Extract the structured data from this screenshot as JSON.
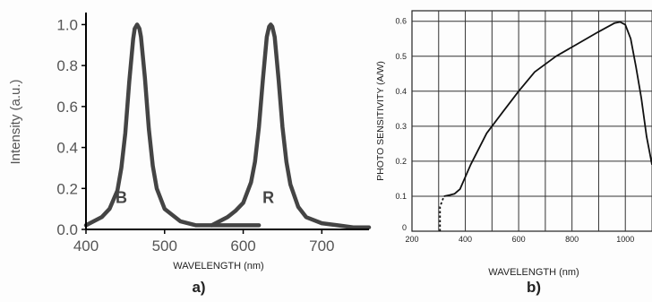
{
  "chart_data": [
    {
      "panel_label": "a)",
      "type": "line",
      "title": "",
      "xlabel": "WAVELENGTH (nm)",
      "ylabel": "Intensity (a.u.)",
      "xlim": [
        400,
        760
      ],
      "ylim": [
        0,
        1.05
      ],
      "x_ticks": [
        400,
        500,
        600,
        700
      ],
      "x_tick_labels": [
        "400",
        "500",
        "600",
        "700"
      ],
      "y_ticks": [
        0.0,
        0.2,
        0.4,
        0.6,
        0.8,
        1.0
      ],
      "y_tick_labels": [
        "0.0",
        "0.2",
        "0.4",
        "0.6",
        "0.8",
        "1.0"
      ],
      "grid": false,
      "legend": "none",
      "color": "#444444",
      "series": [
        {
          "label": "B",
          "label_point": [
            445,
            0.16
          ],
          "x": [
            400,
            420,
            430,
            440,
            445,
            450,
            455,
            460,
            462,
            465,
            468,
            470,
            475,
            480,
            485,
            490,
            500,
            520,
            540,
            560,
            580,
            600,
            610,
            620
          ],
          "y": [
            0.02,
            0.06,
            0.1,
            0.19,
            0.3,
            0.47,
            0.72,
            0.93,
            0.98,
            1.0,
            0.98,
            0.94,
            0.74,
            0.49,
            0.31,
            0.2,
            0.1,
            0.04,
            0.02,
            0.02,
            0.02,
            0.02,
            0.02,
            0.02
          ]
        },
        {
          "label": "R",
          "label_point": [
            632,
            0.16
          ],
          "x": [
            560,
            580,
            590,
            600,
            610,
            615,
            620,
            625,
            630,
            633,
            635,
            637,
            640,
            645,
            650,
            655,
            660,
            670,
            680,
            700,
            720,
            740,
            760
          ],
          "y": [
            0.02,
            0.06,
            0.09,
            0.13,
            0.23,
            0.33,
            0.5,
            0.73,
            0.94,
            0.99,
            1.0,
            0.99,
            0.94,
            0.73,
            0.5,
            0.33,
            0.22,
            0.11,
            0.06,
            0.03,
            0.02,
            0.01,
            0.01
          ]
        }
      ]
    },
    {
      "panel_label": "b)",
      "type": "line",
      "title": "",
      "xlabel": "WAVELENGTH (nm)",
      "ylabel": "PHOTO SENSITIVITY (A/W)",
      "xlim": [
        200,
        1100
      ],
      "ylim": [
        0,
        0.63
      ],
      "x_ticks": [
        200,
        400,
        600,
        800,
        1000
      ],
      "x_tick_labels": [
        "200",
        "400",
        "600",
        "800",
        "1000"
      ],
      "x_grid_step": 100,
      "y_ticks": [
        0,
        0.1,
        0.2,
        0.3,
        0.4,
        0.5,
        0.6
      ],
      "y_tick_labels": [
        "0",
        "0.1",
        "0.2",
        "0.3",
        "0.4",
        "0.5",
        "0.6"
      ],
      "y_grid_step": 0.1,
      "grid": true,
      "legend": "none",
      "color": "#111111",
      "series": [
        {
          "label": "",
          "dashed_x": [
            305,
            305,
            320
          ],
          "dashed_y": [
            0.0,
            0.07,
            0.1
          ],
          "x": [
            320,
            340,
            360,
            380,
            420,
            480,
            540,
            600,
            660,
            740,
            820,
            900,
            960,
            980,
            1000,
            1020,
            1040,
            1060,
            1080,
            1100
          ],
          "y": [
            0.1,
            0.103,
            0.107,
            0.12,
            0.19,
            0.28,
            0.34,
            0.4,
            0.455,
            0.5,
            0.535,
            0.57,
            0.595,
            0.598,
            0.59,
            0.55,
            0.47,
            0.38,
            0.27,
            0.19
          ]
        }
      ]
    }
  ]
}
